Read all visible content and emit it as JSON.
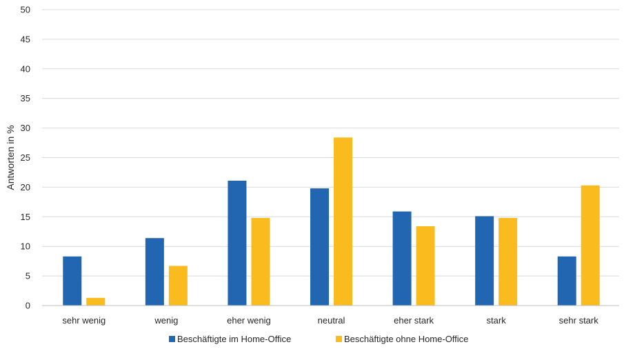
{
  "chart_data": {
    "type": "bar",
    "categories": [
      "sehr wenig",
      "wenig",
      "eher wenig",
      "neutral",
      "eher stark",
      "stark",
      "sehr stark"
    ],
    "series": [
      {
        "name": "Beschäftigte im Home-Office",
        "color": "#2266b2",
        "values": [
          8.3,
          11.4,
          21.1,
          19.8,
          15.9,
          15.1,
          8.3
        ]
      },
      {
        "name": "Beschäftigte ohne Home-Office",
        "color": "#f9bb1e",
        "values": [
          1.3,
          6.7,
          14.8,
          28.4,
          13.4,
          14.8,
          20.3
        ]
      }
    ],
    "ylabel": "Antworten in %",
    "ylim": [
      0,
      50
    ],
    "yticks": [
      0,
      5,
      10,
      15,
      20,
      25,
      30,
      35,
      40,
      45,
      50
    ],
    "grid": true,
    "legend": "bottom"
  }
}
